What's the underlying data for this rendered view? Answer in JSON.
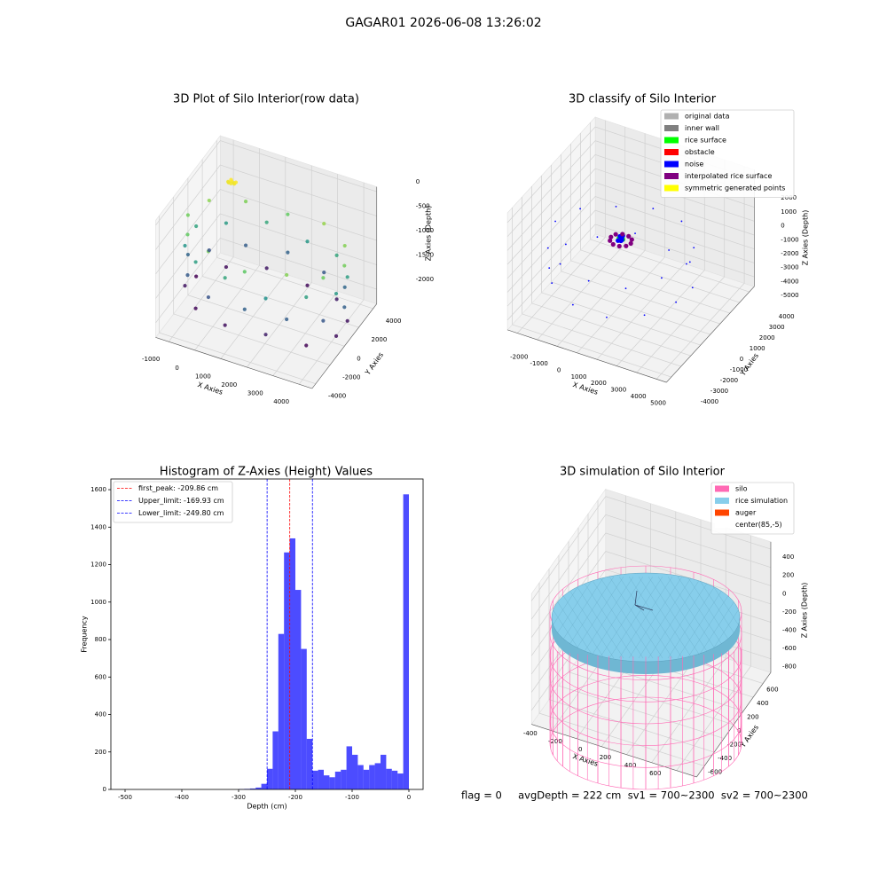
{
  "title": "GAGAR01 2026-06-08 13:26:02",
  "footer": "flag = 0     avgDepth = 222 cm  sv1 = 700~2300  sv2 = 700~2300",
  "chart_data": [
    {
      "type": "scatter3d",
      "title": "3D Plot of Silo Interior(row data)",
      "xlabel": "X Axies",
      "ylabel": "Y Axies",
      "zlabel": "Z Axies (Depth)",
      "xlim": [
        -1500,
        4500
      ],
      "ylim": [
        -4500,
        4500
      ],
      "zlim": [
        -2300,
        100
      ],
      "xticks": [
        -1000,
        0,
        1000,
        2000,
        3000,
        4000
      ],
      "yticks": [
        -4000,
        -2000,
        0,
        2000,
        4000
      ],
      "zticks": [
        0,
        -500,
        -1000,
        -1500,
        -2000
      ],
      "colormap": "viridis",
      "points": {
        "x": [
          4500,
          4100,
          3000,
          1500,
          0,
          -1100,
          -1500,
          -1100,
          0,
          1500,
          3000,
          4100,
          4400,
          3620,
          2280,
          720,
          -620,
          -1400,
          -1400,
          -620,
          720,
          2280,
          3620,
          4400,
          4500,
          4100,
          3000,
          1500,
          0,
          -1100,
          -1500,
          -1100,
          0,
          1500,
          3000,
          4100,
          4400,
          3620,
          2280,
          720,
          -620,
          -1400,
          -1400,
          -620,
          720,
          2280,
          3620,
          4400,
          -600,
          -500,
          -450,
          -550,
          -400,
          -650,
          -500,
          -350
        ],
        "y": [
          0,
          1500,
          2600,
          3000,
          2600,
          1500,
          0,
          -1500,
          -2600,
          -3000,
          -2600,
          -1500,
          780,
          2120,
          2900,
          2900,
          2120,
          780,
          -780,
          -2120,
          -2900,
          -2900,
          -2120,
          -780,
          0,
          1500,
          2600,
          3000,
          2600,
          1500,
          0,
          -1500,
          -2600,
          -3000,
          -2600,
          -1500,
          780,
          2120,
          2900,
          2900,
          2120,
          780,
          -780,
          -2120,
          -2900,
          -2900,
          -2120,
          -780,
          2400,
          2500,
          2600,
          2550,
          2450,
          2500,
          2350,
          2500
        ],
        "z": [
          -650,
          -600,
          -550,
          -700,
          -620,
          -580,
          -660,
          -700,
          -640,
          -720,
          -600,
          -680,
          -1050,
          -1000,
          -1100,
          -980,
          -1080,
          -1020,
          -1120,
          -1060,
          -1000,
          -1150,
          -1040,
          -1090,
          -1500,
          -1450,
          -1550,
          -1480,
          -1520,
          -1600,
          -1470,
          -1530,
          -1580,
          -1490,
          -1510,
          -1560,
          -1950,
          -1900,
          -2000,
          -1920,
          -1980,
          -2050,
          -1940,
          -2010,
          -1970,
          -1890,
          -2030,
          -1960,
          -300,
          -280,
          -320,
          -260,
          -300,
          -310,
          -290,
          -270
        ]
      }
    },
    {
      "type": "scatter3d",
      "title": "3D classify of Silo Interior",
      "xlabel": "X Axies",
      "ylabel": "Y Axies",
      "zlabel": "Z Axies (Depth)",
      "xlim": [
        -2500,
        5500
      ],
      "ylim": [
        -4500,
        4500
      ],
      "zlim": [
        -5700,
        2700
      ],
      "xticks": [
        -2000,
        -1000,
        0,
        1000,
        2000,
        3000,
        4000,
        5000
      ],
      "yticks": [
        -4000,
        -3000,
        -2000,
        -1000,
        0,
        1000,
        2000,
        3000,
        4000
      ],
      "zticks": [
        2000,
        1000,
        0,
        -1000,
        -2000,
        -3000,
        -4000,
        -5000
      ],
      "legend": "upper right",
      "series": [
        {
          "name": "original data",
          "color": "#b0b0b0"
        },
        {
          "name": "inner wall",
          "color": "#808080"
        },
        {
          "name": "rice surface",
          "color": "#00ff00",
          "x": [
            900,
            1000,
            1100,
            1000
          ],
          "y": [
            0,
            150,
            0,
            -150
          ],
          "z": [
            -950,
            -950,
            -950,
            -950
          ]
        },
        {
          "name": "obstacle",
          "color": "#ff0000"
        },
        {
          "name": "noise",
          "color": "#0000ff",
          "x": [
            4300,
            3860,
            2650,
            1000,
            -650,
            -1860,
            -2300,
            -1860,
            -650,
            1000,
            2650,
            3860,
            4190,
            3330,
            1850,
            150,
            -1330,
            -2190,
            -2190,
            -1330,
            150,
            1850,
            3330,
            4190,
            900,
            1100,
            1000,
            950,
            1050,
            1000
          ],
          "y": [
            0,
            1650,
            2860,
            3300,
            2860,
            1650,
            0,
            -1650,
            -2860,
            -3300,
            -2860,
            -1650,
            850,
            2330,
            3190,
            3190,
            2330,
            850,
            -850,
            -2330,
            -3190,
            -3190,
            -2330,
            -850,
            100,
            -100,
            200,
            -200,
            0,
            0
          ],
          "z": [
            -1200,
            -1500,
            -1100,
            -1300,
            -1600,
            -1400,
            -1250,
            -1700,
            -1350,
            -1450,
            -1550,
            -1150,
            -3600,
            -3300,
            -3800,
            -3400,
            -3700,
            -3500,
            -3900,
            -3450,
            -3650,
            -3750,
            -3550,
            -3350,
            -900,
            -920,
            -880,
            -950,
            -910,
            -1100
          ]
        },
        {
          "name": "interpolated rice surface",
          "color": "#800080",
          "x": [
            1500,
            1405,
            1155,
            845,
            595,
            500,
            595,
            845,
            1155,
            1405
          ],
          "y": [
            0,
            294,
            476,
            476,
            294,
            0,
            -294,
            -476,
            -476,
            -294
          ],
          "z": [
            -1050,
            -1040,
            -1060,
            -1050,
            -1045,
            -1055,
            -1050,
            -1060,
            -1040,
            -1050
          ]
        },
        {
          "name": "symmetric generated points",
          "color": "#ffff00"
        }
      ]
    },
    {
      "type": "histogram",
      "title": "Histogram of Z-Axies (Height) Values",
      "xlabel": "Depth (cm)",
      "ylabel": "Frequency",
      "xlim": [
        -525,
        25
      ],
      "ylim": [
        0,
        1657
      ],
      "xticks": [
        -500,
        -400,
        -300,
        -200,
        -100,
        0
      ],
      "yticks": [
        0,
        200,
        400,
        600,
        800,
        1000,
        1200,
        1400,
        1600
      ],
      "color": "blue",
      "alpha": 0.7,
      "legend": "upper left",
      "bins": [
        -300,
        -290,
        -280,
        -270,
        -260,
        -250,
        -240,
        -230,
        -220,
        -210,
        -200,
        -190,
        -180,
        -170,
        -160,
        -150,
        -140,
        -130,
        -120,
        -110,
        -100,
        -90,
        -80,
        -70,
        -60,
        -50,
        -40,
        -30,
        -20,
        -10,
        0
      ],
      "counts": [
        2,
        3,
        5,
        10,
        30,
        110,
        310,
        830,
        1265,
        1340,
        1065,
        750,
        270,
        100,
        105,
        75,
        65,
        95,
        105,
        230,
        185,
        130,
        105,
        130,
        140,
        185,
        110,
        100,
        85,
        1575
      ],
      "lines": [
        {
          "name": "first_peak: -209.86 cm",
          "value": -209.86,
          "color": "red"
        },
        {
          "name": "Upper_limit: -169.93 cm",
          "value": -169.93,
          "color": "blue"
        },
        {
          "name": "Lower_limit: -249.80 cm",
          "value": -249.8,
          "color": "blue"
        }
      ]
    },
    {
      "type": "surface3d",
      "title": "3D simulation of Silo Interior",
      "xlabel": "X Axies",
      "ylabel": "Y Axies",
      "zlabel": "Z Axies (Depth)",
      "xlim": [
        -560,
        760
      ],
      "ylim": [
        -760,
        760
      ],
      "zlim": [
        -950,
        480
      ],
      "xticks": [
        -400,
        -200,
        0,
        200,
        400,
        600
      ],
      "yticks": [
        -600,
        -400,
        -200,
        0,
        200,
        400,
        600
      ],
      "zticks": [
        400,
        200,
        0,
        -200,
        -400,
        -600,
        -800
      ],
      "legend": "upper right",
      "series": [
        {
          "name": "silo",
          "color": "#ff69b4"
        },
        {
          "name": "rice simulation",
          "color": "#87ceeb"
        },
        {
          "name": "auger",
          "color": "#ff4500"
        },
        {
          "name": "center(85,-5)",
          "color": "#ffffff"
        }
      ]
    }
  ]
}
